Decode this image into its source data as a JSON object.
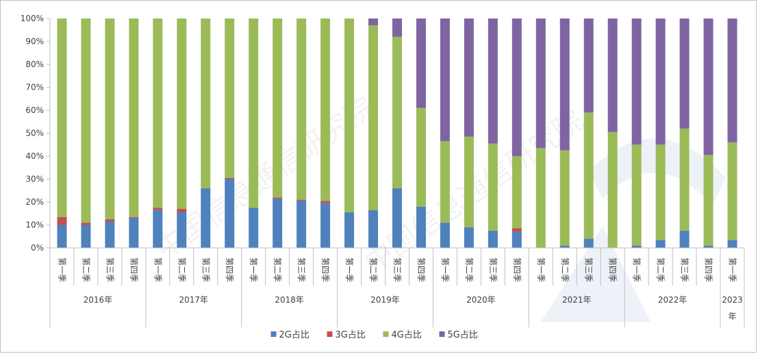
{
  "chart_data": {
    "type": "bar",
    "stacked": true,
    "ylim": [
      0,
      100
    ],
    "y_ticks": [
      "0%",
      "10%",
      "20%",
      "30%",
      "40%",
      "50%",
      "60%",
      "70%",
      "80%",
      "90%",
      "100%"
    ],
    "grid": false,
    "legend_position": "bottom",
    "categories": [
      "第一季",
      "第二季",
      "第三季",
      "第四季",
      "第一季",
      "第二季",
      "第三季",
      "第四季",
      "第一季",
      "第二季",
      "第三季",
      "第四季",
      "第一季",
      "第二季",
      "第三季",
      "第四季",
      "第一季",
      "第二季",
      "第三季",
      "第四季",
      "第一季",
      "第二季",
      "第三季",
      "第四季",
      "第一季",
      "第二季",
      "第三季",
      "第四季",
      "第一季"
    ],
    "year_groups": [
      {
        "label": "2016年",
        "count": 4
      },
      {
        "label": "2017年",
        "count": 4
      },
      {
        "label": "2018年",
        "count": 4
      },
      {
        "label": "2019年",
        "count": 4
      },
      {
        "label": "2020年",
        "count": 4
      },
      {
        "label": "2021年",
        "count": 4
      },
      {
        "label": "2022年",
        "count": 4
      },
      {
        "label": "2023年",
        "count": 1
      }
    ],
    "series": [
      {
        "name": "2G占比",
        "color": "#4f81bd",
        "values": [
          10,
          10,
          11.5,
          13,
          16.5,
          15.5,
          26,
          30,
          17.5,
          21.5,
          20.5,
          19.5,
          15.5,
          16.5,
          26,
          18,
          11,
          9,
          7.5,
          7,
          0,
          1,
          4,
          0,
          1,
          3.5,
          7.5,
          1,
          3.5
        ]
      },
      {
        "name": "3G占比",
        "color": "#c0504d",
        "values": [
          3.5,
          1,
          1,
          0.5,
          1,
          1.5,
          0,
          0.5,
          0,
          0.5,
          0.5,
          1,
          0,
          0,
          0,
          0,
          0,
          0,
          0,
          1.5,
          0,
          0,
          0,
          0,
          0,
          0,
          0,
          0,
          0
        ]
      },
      {
        "name": "4G占比",
        "color": "#9bbb59",
        "values": [
          86.5,
          89,
          87.5,
          86.5,
          82.5,
          83,
          74,
          69.5,
          82.5,
          78,
          79,
          79.5,
          84.5,
          80.5,
          66,
          43,
          35.5,
          39.5,
          38,
          31.5,
          43.5,
          41.5,
          55,
          50.5,
          44,
          41.5,
          44.5,
          39.5,
          42.5
        ]
      },
      {
        "name": "5G占比",
        "color": "#8064a2",
        "values": [
          0,
          0,
          0,
          0,
          0,
          0,
          0,
          0,
          0,
          0,
          0,
          0,
          0,
          3,
          8,
          39,
          53.5,
          51.5,
          54.5,
          60,
          56.5,
          57.5,
          41,
          49.5,
          55,
          55,
          48,
          59.5,
          54
        ]
      }
    ]
  },
  "watermark": {
    "text_1": "中国信息通信研究院",
    "text_2": "中国信息通信研究院"
  }
}
